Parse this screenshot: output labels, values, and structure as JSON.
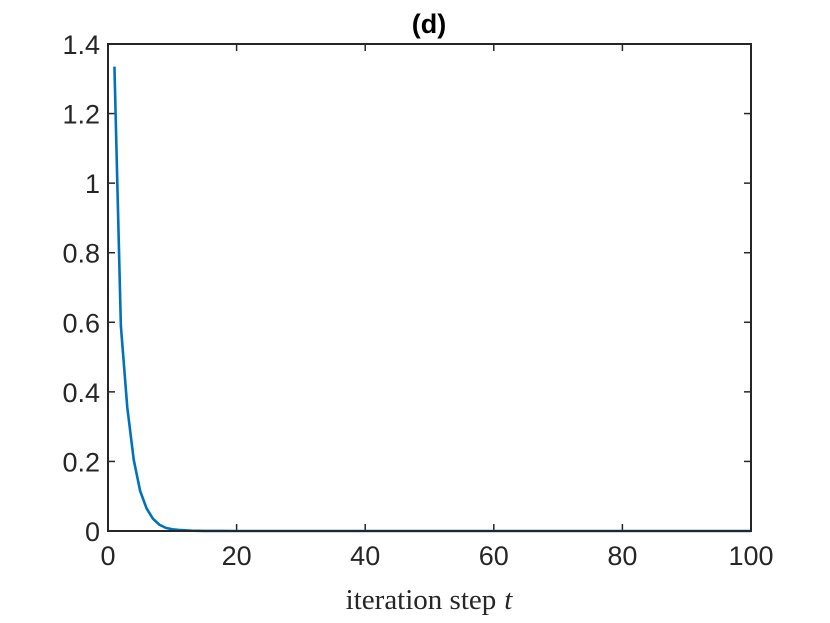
{
  "chart_data": {
    "type": "line",
    "title": "(d)",
    "xlabel_text": "iteration step",
    "xlabel_var": "t",
    "ylabel": "",
    "xlim": [
      0,
      100
    ],
    "ylim": [
      0,
      1.4
    ],
    "xticks": [
      0,
      20,
      40,
      60,
      80,
      100
    ],
    "xtick_labels": [
      "0",
      "20",
      "40",
      "60",
      "80",
      "100"
    ],
    "yticks": [
      0,
      0.2,
      0.4,
      0.6,
      0.8,
      1,
      1.2,
      1.4
    ],
    "ytick_labels": [
      "0",
      "0.2",
      "0.4",
      "0.6",
      "0.8",
      "1",
      "1.2",
      "1.4"
    ],
    "grid": false,
    "series": [
      {
        "color": "#0072BD",
        "x": [
          1,
          2,
          3,
          4,
          5,
          6,
          7,
          8,
          9,
          10,
          11,
          12,
          13,
          14,
          15,
          16,
          18,
          20,
          25,
          30,
          40,
          50,
          60,
          70,
          80,
          90,
          100
        ],
        "y": [
          1.335,
          0.59,
          0.355,
          0.205,
          0.115,
          0.065,
          0.035,
          0.018,
          0.009,
          0.005,
          0.003,
          0.002,
          0.001,
          0.0005,
          0.0003,
          0.0002,
          0.0001,
          0,
          0,
          0,
          0,
          0,
          0,
          0,
          0,
          0,
          0
        ]
      }
    ]
  }
}
